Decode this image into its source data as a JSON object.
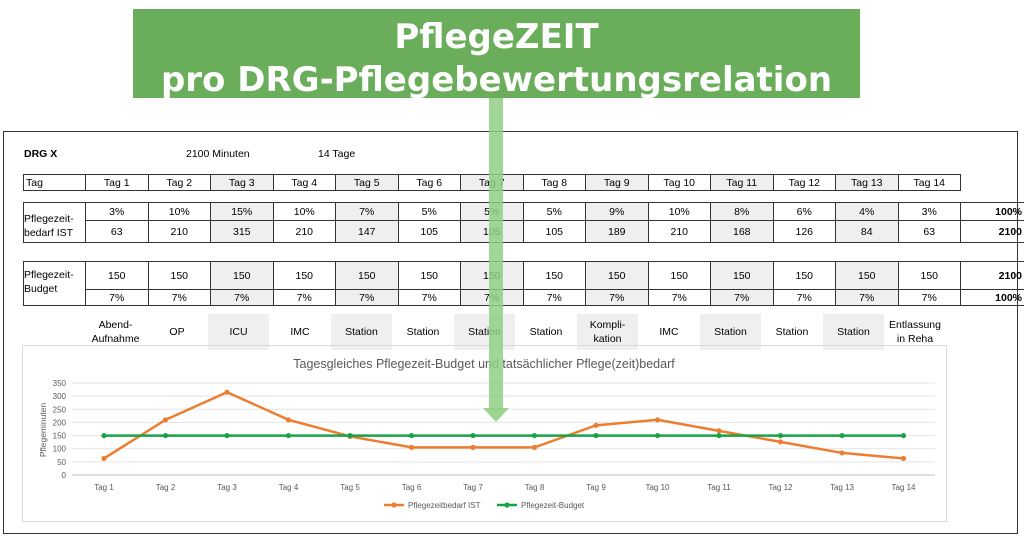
{
  "banner": {
    "line1": "PflegeZEIT",
    "line2": "pro DRG-Pflegebewertungsrelation"
  },
  "header": {
    "drg": "DRG X",
    "minutes": "2100 Minuten",
    "days": "14 Tage"
  },
  "table": {
    "tag_label": "Tag",
    "days": [
      "Tag 1",
      "Tag 2",
      "Tag 3",
      "Tag 4",
      "Tag 5",
      "Tag 6",
      "Tag 7",
      "Tag 8",
      "Tag 9",
      "Tag 10",
      "Tag 11",
      "Tag 12",
      "Tag 13",
      "Tag 14"
    ],
    "ist_label_1": "Pflegezeit-",
    "ist_label_2": "bedarf IST",
    "ist_percent": [
      "3%",
      "10%",
      "15%",
      "10%",
      "7%",
      "5%",
      "5%",
      "5%",
      "9%",
      "10%",
      "8%",
      "6%",
      "4%",
      "3%"
    ],
    "ist_percent_total": "100%",
    "ist_minutes": [
      "63",
      "210",
      "315",
      "210",
      "147",
      "105",
      "105",
      "105",
      "189",
      "210",
      "168",
      "126",
      "84",
      "63"
    ],
    "ist_minutes_total": "2100",
    "budget_label_1": "Pflegezeit-",
    "budget_label_2": "Budget",
    "budget_minutes": [
      "150",
      "150",
      "150",
      "150",
      "150",
      "150",
      "150",
      "150",
      "150",
      "150",
      "150",
      "150",
      "150",
      "150"
    ],
    "budget_minutes_total": "2100",
    "budget_percent": [
      "7%",
      "7%",
      "7%",
      "7%",
      "7%",
      "7%",
      "7%",
      "7%",
      "7%",
      "7%",
      "7%",
      "7%",
      "7%",
      "7%"
    ],
    "budget_percent_total": "100%",
    "phases": [
      "Abend-\nAufnahme",
      "OP",
      "ICU",
      "IMC",
      "Station",
      "Station",
      "Station",
      "Station",
      "Kompli-\nkation",
      "IMC",
      "Station",
      "Station",
      "Station",
      "Entlassung\nin Reha"
    ]
  },
  "chart_data": {
    "type": "line",
    "title": "Tagesgleiches Pflegezeit-Budget und tatsächlicher Pflege(zeit)bedarf",
    "ylabel": "Pflegeminuten",
    "xlabel": "",
    "categories": [
      "Tag 1",
      "Tag 2",
      "Tag 3",
      "Tag 4",
      "Tag 5",
      "Tag 6",
      "Tag 7",
      "Tag 8",
      "Tag 9",
      "Tag 10",
      "Tag 11",
      "Tag 12",
      "Tag 13",
      "Tag 14"
    ],
    "ylim": [
      0,
      350
    ],
    "yticks": [
      "0",
      "50",
      "100",
      "150",
      "200",
      "250",
      "300",
      "350"
    ],
    "grid": true,
    "legend": "bottom",
    "series": [
      {
        "name": "Pflegezeitbedarf IST",
        "color": "#ed7d31",
        "values": [
          63,
          210,
          315,
          210,
          147,
          105,
          105,
          105,
          189,
          210,
          168,
          126,
          84,
          63
        ]
      },
      {
        "name": "Pflegezeit-Budget",
        "color": "#17a347",
        "values": [
          150,
          150,
          150,
          150,
          150,
          150,
          150,
          150,
          150,
          150,
          150,
          150,
          150,
          150
        ]
      }
    ]
  }
}
